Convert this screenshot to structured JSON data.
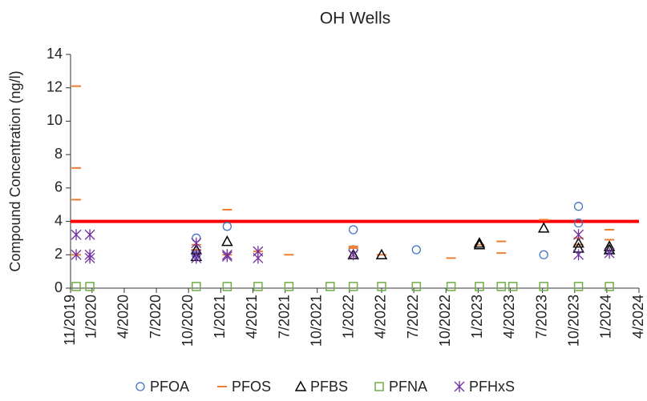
{
  "chart_data": {
    "type": "scatter",
    "title": "OH Wells",
    "y_label": "Compound Concentration (ng/l)",
    "xlim": [
      2019.833,
      2024.25
    ],
    "xticks": [
      {
        "value": 2019.833,
        "label": "11/2019"
      },
      {
        "value": 2020.0,
        "label": "1/2020"
      },
      {
        "value": 2020.25,
        "label": "4/2020"
      },
      {
        "value": 2020.5,
        "label": "7/2020"
      },
      {
        "value": 2020.75,
        "label": "10/2020"
      },
      {
        "value": 2021.0,
        "label": "1/2021"
      },
      {
        "value": 2021.25,
        "label": "4/2021"
      },
      {
        "value": 2021.5,
        "label": "7/2021"
      },
      {
        "value": 2021.75,
        "label": "10/2021"
      },
      {
        "value": 2022.0,
        "label": "1/2022"
      },
      {
        "value": 2022.25,
        "label": "4/2022"
      },
      {
        "value": 2022.5,
        "label": "7/2022"
      },
      {
        "value": 2022.75,
        "label": "10/2022"
      },
      {
        "value": 2023.0,
        "label": "1/2023"
      },
      {
        "value": 2023.25,
        "label": "4/2023"
      },
      {
        "value": 2023.5,
        "label": "7/2023"
      },
      {
        "value": 2023.75,
        "label": "10/2023"
      },
      {
        "value": 2024.0,
        "label": "1/2024"
      },
      {
        "value": 2024.25,
        "label": "4/2024"
      }
    ],
    "ylim": [
      0,
      14
    ],
    "yticks": [
      0,
      2,
      4,
      6,
      8,
      10,
      12,
      14
    ],
    "reference_line": {
      "value": 4,
      "color": "#ff0000"
    },
    "legend": "bottom",
    "series": [
      {
        "name": "PFOA",
        "color": "#4472c4",
        "marker": "circle",
        "x": [
          2020.81,
          2020.81,
          2021.05,
          2022.03,
          2022.03,
          2022.52,
          2023.51,
          2023.78,
          2023.78,
          2024.02
        ],
        "values": [
          3.0,
          2.0,
          3.7,
          3.5,
          2.3,
          2.3,
          2.0,
          4.9,
          3.9,
          2.3
        ]
      },
      {
        "name": "PFOS",
        "color": "#ed7d31",
        "marker": "dash",
        "x": [
          2019.877,
          2019.877,
          2019.877,
          2019.877,
          2020.81,
          2020.81,
          2021.05,
          2021.05,
          2021.29,
          2021.53,
          2022.03,
          2022.03,
          2022.25,
          2022.79,
          2023.01,
          2023.18,
          2023.18,
          2023.51,
          2023.78,
          2023.78,
          2024.02,
          2024.02
        ],
        "values": [
          12.1,
          7.2,
          5.3,
          2.0,
          2.6,
          2.3,
          4.7,
          2.0,
          2.2,
          2.0,
          2.5,
          2.4,
          2.0,
          1.8,
          2.6,
          2.8,
          2.1,
          4.1,
          3.0,
          2.6,
          3.5,
          2.9
        ]
      },
      {
        "name": "PFBS",
        "color": "#000000",
        "marker": "triangle",
        "x": [
          2020.81,
          2020.81,
          2021.05,
          2022.03,
          2022.25,
          2023.01,
          2023.01,
          2023.51,
          2023.78,
          2023.78,
          2024.02,
          2024.02
        ],
        "values": [
          2.3,
          1.9,
          2.8,
          2.0,
          2.0,
          2.7,
          2.6,
          3.6,
          2.7,
          2.4,
          2.5,
          2.3
        ]
      },
      {
        "name": "PFNA",
        "color": "#70ad47",
        "marker": "square",
        "x": [
          2019.877,
          2019.983,
          2020.81,
          2021.05,
          2021.29,
          2021.53,
          2021.85,
          2022.03,
          2022.25,
          2022.52,
          2022.79,
          2023.01,
          2023.18,
          2023.27,
          2023.51,
          2023.78,
          2024.02
        ],
        "values": [
          0.1,
          0.1,
          0.1,
          0.1,
          0.1,
          0.1,
          0.1,
          0.1,
          0.1,
          0.1,
          0.1,
          0.1,
          0.1,
          0.1,
          0.1,
          0.1,
          0.1
        ]
      },
      {
        "name": "PFHxS",
        "color": "#7030a0",
        "marker": "asterisk",
        "x": [
          2019.877,
          2019.877,
          2019.983,
          2019.983,
          2019.983,
          2020.81,
          2020.81,
          2020.81,
          2021.05,
          2021.05,
          2021.29,
          2021.29,
          2022.03,
          2023.78,
          2023.78,
          2024.02
        ],
        "values": [
          3.2,
          2.0,
          3.2,
          2.0,
          1.8,
          2.7,
          2.0,
          1.8,
          2.0,
          1.9,
          2.2,
          1.8,
          2.0,
          3.2,
          2.0,
          2.1
        ]
      }
    ]
  }
}
